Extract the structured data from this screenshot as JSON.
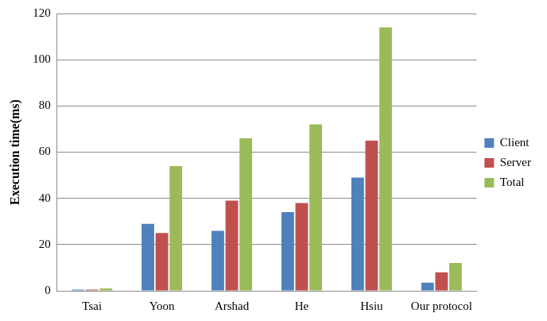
{
  "chart_data": {
    "type": "bar",
    "y_label": "Execution time(ms)",
    "categories": [
      "Tsai",
      "Yoon",
      "Arshad",
      "He",
      "Hsiu",
      "Our protocol"
    ],
    "series": [
      {
        "name": "Client",
        "color": "#4f81bd",
        "values": [
          0.5,
          29,
          26,
          34,
          49,
          3.5
        ]
      },
      {
        "name": "Server",
        "color": "#c0504d",
        "values": [
          0.5,
          25,
          39,
          38,
          65,
          8
        ]
      },
      {
        "name": "Total",
        "color": "#9bbb59",
        "values": [
          1,
          54,
          66,
          72,
          114,
          12
        ]
      }
    ],
    "ylim": [
      0,
      120
    ],
    "yticks": [
      0,
      20,
      40,
      60,
      80,
      100,
      120
    ],
    "grid": true,
    "legend": "right"
  }
}
